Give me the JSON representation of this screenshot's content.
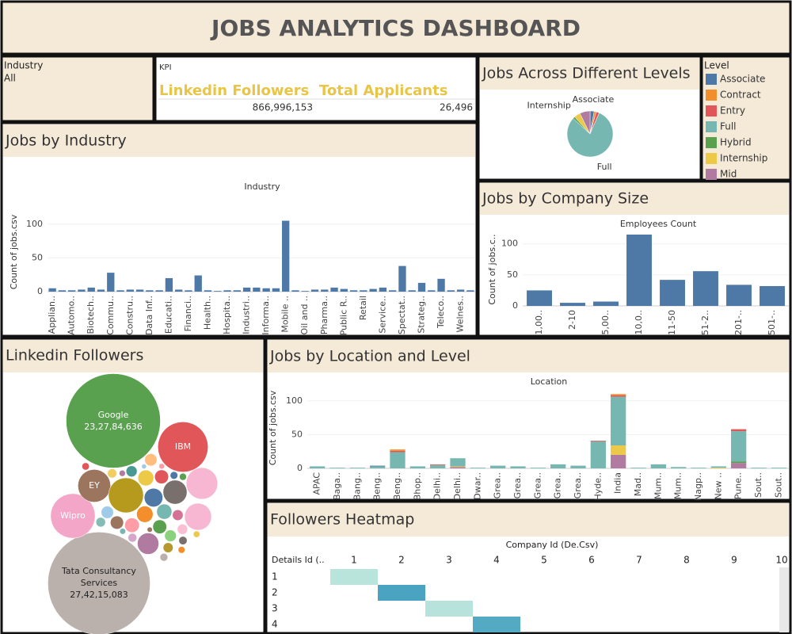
{
  "title": "JOBS ANALYTICS DASHBOARD",
  "filter": {
    "label": "Industry",
    "value": "All"
  },
  "kpi": {
    "label": "KPI",
    "items": [
      {
        "name": "Linkedin Followers",
        "value": "866,996,153"
      },
      {
        "name": "Total Applicants",
        "value": "26,496"
      }
    ]
  },
  "chart_data": [
    {
      "type": "pie",
      "title": "Jobs Across Different Levels",
      "categories": [
        "Associate",
        null,
        null,
        "Full",
        null,
        "Internship",
        null
      ],
      "values": [
        4,
        2,
        3,
        110,
        2,
        6,
        10
      ],
      "colors": [
        "#4e79a7",
        "#f28e2b",
        "#e15759",
        "#76b7b2",
        "#59a14f",
        "#edc948",
        "#b07aa1"
      ]
    },
    {
      "type": "bar",
      "title": "Jobs by Industry",
      "x_label": "Industry",
      "y_label": "Count of jobs.csv",
      "color": "#4e79a7",
      "ylim": [
        0,
        115
      ],
      "yticks": [
        0,
        50,
        100
      ],
      "categories": [
        "Applian..",
        null,
        "Automo..",
        null,
        "Biotech..",
        null,
        "Commu..",
        null,
        "Constru..",
        null,
        "Data Inf..",
        null,
        "Educati..",
        null,
        "Financi..",
        null,
        "Health..",
        null,
        "Hospita..",
        null,
        "Industri..",
        null,
        "Informa..",
        null,
        "Mobile ..",
        null,
        "Oil and ..",
        null,
        "Pharma..",
        null,
        "Public R..",
        null,
        "Retail",
        null,
        "Service..",
        null,
        "Spectat..",
        null,
        "Strateg..",
        null,
        "Teleco..",
        null,
        "Welnes..",
        null
      ],
      "values": [
        5,
        2,
        2,
        3,
        6,
        3,
        28,
        2,
        3,
        3,
        2,
        2,
        20,
        3,
        2,
        24,
        2,
        1,
        2,
        2,
        6,
        6,
        5,
        5,
        105,
        2,
        1,
        3,
        3,
        6,
        4,
        2,
        2,
        4,
        6,
        2,
        38,
        2,
        13,
        2,
        19,
        2,
        3,
        2
      ]
    },
    {
      "type": "bar",
      "title": "Jobs by Company Size",
      "x_label": "Employees Count",
      "y_label": "Count of jobs.c..",
      "color": "#4e79a7",
      "ylim": [
        0,
        115
      ],
      "yticks": [
        0,
        50,
        100
      ],
      "categories": [
        "1,00..",
        "2-10",
        "5,00..",
        "10,0..",
        "11-50",
        "51-2..",
        "201-..",
        "501-.."
      ],
      "values": [
        25,
        5,
        7,
        115,
        42,
        56,
        34,
        32
      ]
    },
    {
      "type": "stacked_bar",
      "title": "Jobs by Location and Level",
      "legend_title": "Level",
      "x_label": "Location",
      "y_label": "Count of jobs.csv",
      "ylim": [
        0,
        115
      ],
      "yticks": [
        0,
        50,
        100
      ],
      "categories": [
        "APAC",
        "Baga..",
        "Bang..",
        "Beng..",
        "Beng..",
        "Bhop..",
        "Delhi..",
        "Delhi..",
        "Dwar..",
        "Grea..",
        "Grea..",
        "Grea..",
        "Grea..",
        "Grea..",
        "Hyde..",
        "India",
        "Mad..",
        "Mum..",
        "Mum..",
        "Nagp..",
        "New ..",
        "Pune..",
        "Sout..",
        "Sout.."
      ],
      "series": [
        {
          "name": "Associate",
          "color": "#4e79a7",
          "values": [
            0,
            0,
            0,
            1,
            0,
            0,
            0,
            0,
            0,
            0,
            0,
            0,
            0,
            0,
            0,
            0,
            0,
            0,
            0,
            0,
            0,
            0,
            0,
            0
          ]
        },
        {
          "name": "Contract",
          "color": "#f28e2b",
          "values": [
            0,
            0,
            0,
            0,
            2,
            0,
            0,
            0,
            0,
            0,
            0,
            0,
            0,
            0,
            0,
            2,
            0,
            0,
            0,
            0,
            0,
            0,
            0,
            0
          ]
        },
        {
          "name": "Entry",
          "color": "#e15759",
          "values": [
            0,
            0,
            0,
            0,
            2,
            0,
            1,
            0,
            0,
            0,
            0,
            0,
            0,
            0,
            1,
            2,
            0,
            0,
            0,
            0,
            0,
            3,
            0,
            0
          ]
        },
        {
          "name": "Full",
          "color": "#76b7b2",
          "values": [
            3,
            1,
            1,
            3,
            24,
            3,
            5,
            12,
            1,
            4,
            3,
            1,
            6,
            4,
            40,
            72,
            1,
            6,
            2,
            1,
            2,
            45,
            1,
            1
          ]
        },
        {
          "name": "Hybrid",
          "color": "#59a14f",
          "values": [
            0,
            0,
            0,
            0,
            0,
            0,
            0,
            0,
            0,
            0,
            0,
            0,
            0,
            0,
            0,
            0,
            0,
            0,
            0,
            0,
            0,
            2,
            0,
            0
          ]
        },
        {
          "name": "Internship",
          "color": "#edc948",
          "values": [
            0,
            0,
            0,
            0,
            0,
            0,
            0,
            1,
            0,
            0,
            0,
            0,
            0,
            0,
            0,
            14,
            0,
            0,
            0,
            0,
            1,
            0,
            0,
            0
          ]
        },
        {
          "name": "Mid",
          "color": "#b07aa1",
          "values": [
            0,
            0,
            0,
            0,
            0,
            0,
            0,
            2,
            0,
            0,
            0,
            0,
            0,
            0,
            0,
            20,
            0,
            0,
            0,
            0,
            0,
            8,
            0,
            0
          ]
        }
      ]
    },
    {
      "type": "bubble",
      "title": "Linkedin Followers",
      "categories": [
        "Google",
        "Tata Consultancy Services",
        "IBM",
        "Wipro",
        "EY",
        null,
        null,
        null,
        null,
        null,
        null,
        null,
        null,
        null,
        null,
        null,
        null,
        null,
        null,
        null,
        null,
        null,
        null,
        null,
        null,
        null,
        null,
        null,
        null,
        null,
        null,
        null,
        null,
        null,
        null,
        null,
        null,
        null,
        null,
        null
      ],
      "values": [
        232784636,
        274215083,
        66000000,
        52000000,
        28000000,
        32000000,
        15000000,
        26000000,
        19000000,
        12000000,
        9000000,
        7000000,
        6500000,
        6000000,
        5500000,
        5000000,
        5000000,
        4500000,
        4000000,
        4000000,
        3600000,
        3200000,
        3000000,
        2800000,
        2600000,
        2400000,
        2200000,
        2000000,
        1800000,
        1600000,
        1500000,
        1400000,
        1300000,
        1200000,
        1100000,
        1000000,
        900000,
        800000,
        700000,
        600000
      ],
      "value_labels": [
        "23,27,84,636",
        "27,42,15,083",
        null,
        null,
        null,
        null,
        null,
        null,
        null,
        null,
        null,
        null,
        null,
        null,
        null,
        null,
        null,
        null,
        null,
        null,
        null,
        null,
        null,
        null,
        null,
        null,
        null,
        null,
        null,
        null,
        null,
        null,
        null,
        null,
        null,
        null,
        null,
        null,
        null,
        null
      ],
      "colors": [
        "#59a14f",
        "#bab0ac",
        "#e15759",
        "#f4a6c9",
        "#9c755f",
        "#b59a1e",
        "#79706e",
        "#f7b6d2",
        "#f7b6d2",
        "#b07aa1",
        "#4e79a7",
        "#f28e2b",
        "#edc948",
        "#76b7b2",
        "#ff9da7",
        "#e15759",
        "#59a14f",
        "#9c755f",
        "#a0cbe8",
        "#ffbe7d",
        "#8cd17d",
        "#499894",
        "#d37295",
        "#fabfd2",
        "#b6992d",
        "#86bcb6",
        "#f1ce63",
        "#d4a6c8",
        "#79706e",
        "#bab0ac",
        "#4e79a7",
        "#e15759",
        "#59a14f",
        "#f28e2b",
        "#edc948",
        "#b07aa1",
        "#76b7b2",
        "#ff9da7",
        "#9c755f",
        "#a0cbe8"
      ]
    },
    {
      "type": "heatmap",
      "title": "Followers Heatmap",
      "x_label": "Company Id (De.Csv)",
      "y_label": "Details Id (..",
      "x": [
        1,
        2,
        3,
        4,
        5,
        6,
        7,
        8,
        9,
        10
      ],
      "y": [
        1,
        2,
        3,
        4
      ],
      "colorscale": [
        "#b8e4dc",
        "#4aa3c0"
      ],
      "values": [
        [
          21000,
          null,
          null,
          null,
          null,
          null,
          null,
          null,
          null,
          null
        ],
        [
          null,
          760000,
          null,
          null,
          null,
          null,
          null,
          null,
          null,
          null
        ],
        [
          null,
          null,
          30000,
          null,
          null,
          null,
          null,
          null,
          null,
          null
        ],
        [
          null,
          null,
          null,
          690000,
          null,
          null,
          null,
          null,
          null,
          null
        ]
      ]
    }
  ]
}
